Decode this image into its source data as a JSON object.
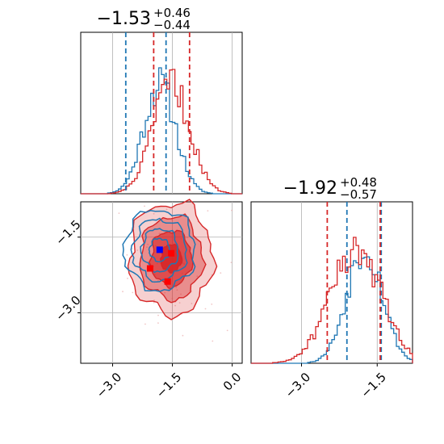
{
  "colors": {
    "blue": "#1f77b4",
    "red": "#d62728",
    "red_fill": "#d62728",
    "grid": "#b0b0b0"
  },
  "chart_data": [
    {
      "type": "histogram",
      "panel": "top-left",
      "title_main": "−1.53",
      "title_sup": "+0.46",
      "title_sub": "−0.44",
      "xlim": [
        -3.8,
        0.25
      ],
      "grid": true,
      "series": [
        {
          "name": "",
          "color": "blue",
          "mean": -1.82,
          "sd": 0.4,
          "quantiles": [
            -2.67,
            -1.66
          ]
        },
        {
          "name": "",
          "color": "red",
          "mean": -1.53,
          "sd": 0.46,
          "quantiles": [
            -1.97,
            -1.07
          ]
        }
      ]
    },
    {
      "type": "histogram",
      "panel": "bottom-right",
      "title_main": "−1.92",
      "title_sup": "+0.48",
      "title_sub": "−0.57",
      "xlim": [
        -4.0,
        -0.8
      ],
      "xticks": [
        "−3.0",
        "−1.5"
      ],
      "xtick_values": [
        -3.0,
        -1.5
      ],
      "grid": true,
      "series": [
        {
          "name": "",
          "color": "blue",
          "mean": -1.75,
          "sd": 0.35,
          "quantiles": [
            -2.1,
            -1.42
          ]
        },
        {
          "name": "",
          "color": "red",
          "mean": -1.92,
          "sd": 0.5,
          "quantiles": [
            -2.49,
            -1.44
          ]
        }
      ]
    },
    {
      "type": "contour",
      "panel": "bottom-left",
      "xlim": [
        -3.8,
        0.25
      ],
      "ylim": [
        -4.0,
        -0.8
      ],
      "xticks": [
        "−3.0",
        "−1.5",
        "0.0"
      ],
      "xtick_values": [
        -3.0,
        -1.5,
        0.0
      ],
      "yticks": [
        "−1.5",
        "−3.0"
      ],
      "ytick_values": [
        -1.5,
        -3.0
      ],
      "grid": true,
      "markers": [
        {
          "color": "blue",
          "x": -1.82,
          "y": -1.75
        },
        {
          "color": "red",
          "x": -1.53,
          "y": -1.82
        },
        {
          "color": "red",
          "x": -2.06,
          "y": -2.12
        },
        {
          "color": "red",
          "x": -1.62,
          "y": -2.38
        }
      ],
      "series": [
        {
          "name": "",
          "color": "red",
          "center": [
            -1.53,
            -1.92
          ],
          "sx": 0.52,
          "sy": 0.55,
          "levels": [
            0.5,
            1.0,
            1.5,
            2.0
          ],
          "filled": true
        },
        {
          "name": "",
          "color": "blue",
          "center": [
            -1.82,
            -1.75
          ],
          "sx": 0.42,
          "sy": 0.38,
          "levels": [
            0.6,
            1.1,
            1.6,
            2.1
          ],
          "filled": false
        }
      ]
    }
  ]
}
